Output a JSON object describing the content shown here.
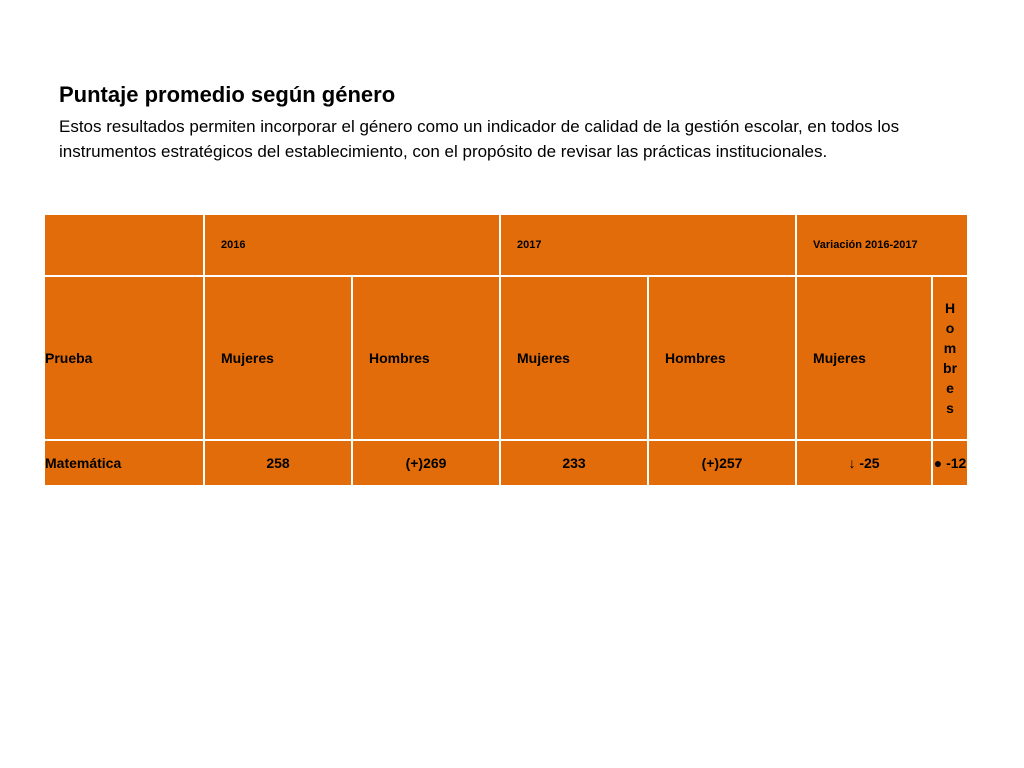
{
  "header": {
    "title": "Puntaje promedio según género",
    "description": "Estos resultados permiten incorporar el género como un indicador de calidad de la gestión escolar, en todos los instrumentos estratégicos del establecimiento, con el propósito de revisar las prácticas institucionales."
  },
  "table": {
    "years": [
      "2016",
      "2017",
      "Variación 2016-2017"
    ],
    "subheaders": {
      "first": "Prueba",
      "cols": [
        "Mujeres",
        "Hombres",
        "Mujeres",
        "Hombres",
        "Mujeres",
        "Hombres"
      ]
    },
    "rows": [
      {
        "subject": "Matemática",
        "values": [
          "258",
          "(+)269",
          "233",
          "(+)257",
          "↓ -25",
          "● -12"
        ]
      }
    ]
  },
  "colors": {
    "cell_background": "#e36c0a",
    "border": "#ffffff"
  }
}
